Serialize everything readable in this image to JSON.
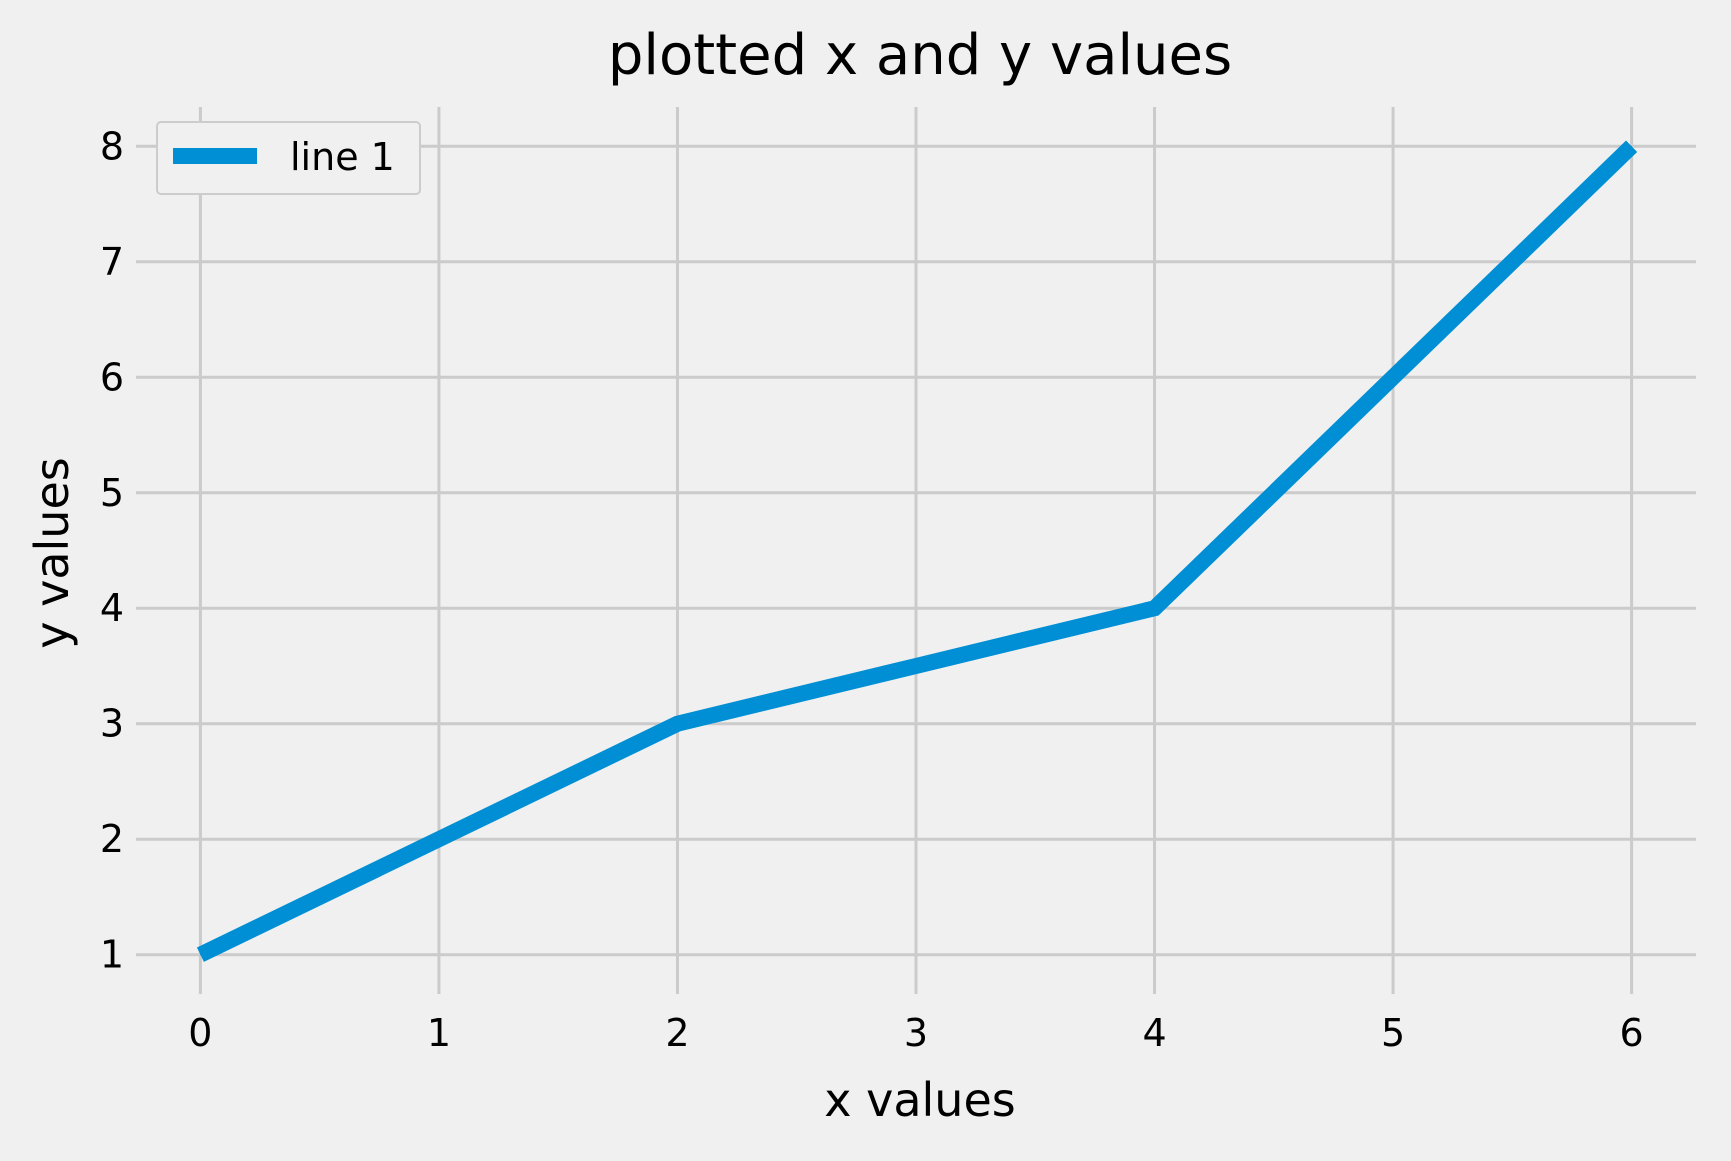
{
  "chart_data": {
    "type": "line",
    "title": "plotted x and y values",
    "xlabel": "x values",
    "ylabel": "y values",
    "xlim": [
      -0.27,
      6.27
    ],
    "ylim": [
      0.66,
      8.34
    ],
    "xticks": [
      0,
      1,
      2,
      3,
      4,
      5,
      6
    ],
    "yticks": [
      1,
      2,
      3,
      4,
      5,
      6,
      7,
      8
    ],
    "grid": true,
    "legend_position": "top-left",
    "series": [
      {
        "name": "line 1",
        "color": "#008fd5",
        "x": [
          0,
          1,
          2,
          3,
          4,
          5,
          6
        ],
        "y": [
          1,
          2,
          3,
          3.5,
          4,
          6,
          8
        ]
      }
    ]
  },
  "colors": {
    "background": "#f0f0f0",
    "grid": "#cbcbcb",
    "text": "#000000"
  }
}
